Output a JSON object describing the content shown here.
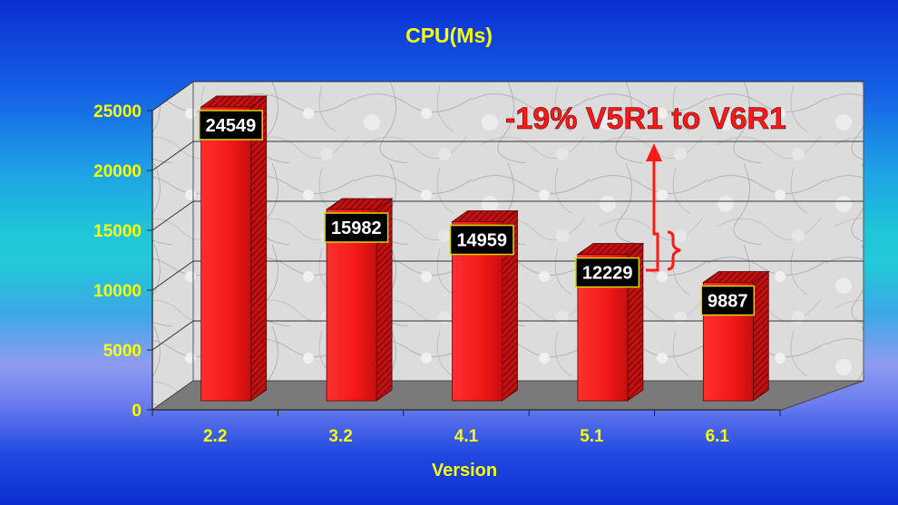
{
  "chart_data": {
    "type": "bar",
    "title": "CPU(Ms)",
    "xlabel": "Version",
    "ylabel": "",
    "categories": [
      "2.2",
      "3.2",
      "4.1",
      "5.1",
      "6.1"
    ],
    "values": [
      24549,
      15982,
      14959,
      12229,
      9887
    ],
    "ylim": [
      0,
      25000
    ],
    "yticks": [
      "0",
      "5000",
      "10000",
      "15000",
      "20000",
      "25000"
    ],
    "data_labels": [
      "24549",
      "15982",
      "14959",
      "12229",
      "9887"
    ],
    "grid": true,
    "legend": "none",
    "annotation": "-19% V5R1 to V6R1",
    "colors": {
      "bar": "#ff1a1a",
      "text": "#ffff00",
      "annotation": "#ff1a1a"
    }
  }
}
